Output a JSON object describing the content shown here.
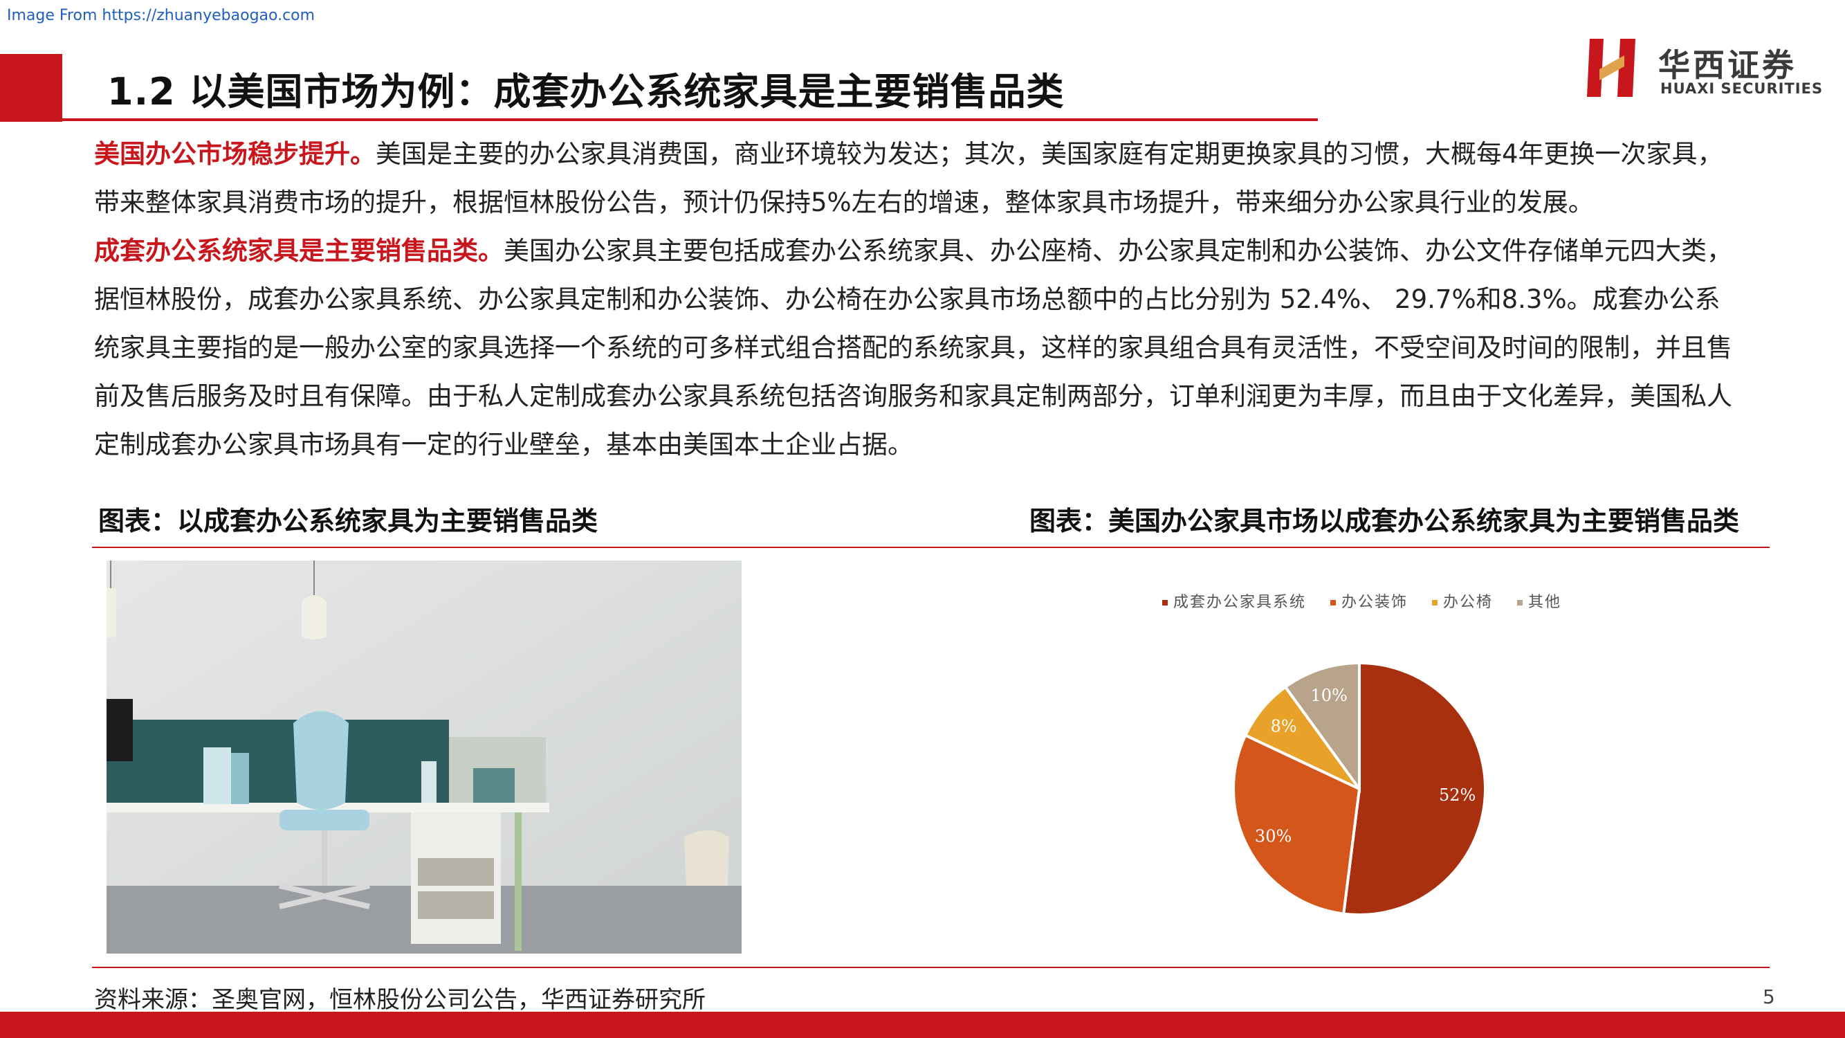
{
  "watermark": "Image From https://zhuanyebaogao.com",
  "header": {
    "title": "1.2  以美国市场为例：成套办公系统家具是主要销售品类",
    "logo_cn": "华西证券",
    "logo_en": "HUAXI SECURITIES",
    "accent_color": "#c8161d"
  },
  "body": {
    "para1_highlight": "美国办公市场稳步提升。",
    "para1_text": "美国是主要的办公家具消费国，商业环境较为发达；其次，美国家庭有定期更换家具的习惯，大概每4年更换一次家具，带来整体家具消费市场的提升，根据恒林股份公告，预计仍保持5%左右的增速，整体家具市场提升，带来细分办公家具行业的发展。",
    "para2_highlight": "成套办公系统家具是主要销售品类。",
    "para2_text": "美国办公家具主要包括成套办公系统家具、办公座椅、办公家具定制和办公装饰、办公文件存储单元四大类，据恒林股份，成套办公家具系统、办公家具定制和办公装饰、办公椅在办公家具市场总额中的占比分别为 52.4%、 29.7%和8.3%。成套办公系统家具主要指的是一般办公室的家具选择一个系统的可多样式组合搭配的系统家具，这样的家具组合具有灵活性，不受空间及时间的限制，并且售前及售后服务及时且有保障。由于私人定制成套办公家具系统包括咨询服务和家具定制两部分，订单利润更为丰厚，而且由于文化差异，美国私人定制成套办公家具市场具有一定的行业壁垒，基本由美国本土企业占据。"
  },
  "figures": {
    "left_caption": "图表：以成套办公系统家具为主要销售品类",
    "right_caption": "图表：美国办公家具市场以成套办公系统家具为主要销售品类"
  },
  "chart_data": {
    "type": "pie",
    "title": "",
    "categories": [
      "成套办公家具系统",
      "办公装饰",
      "办公椅",
      "其他"
    ],
    "values": [
      52,
      30,
      8,
      10
    ],
    "labels": [
      "52%",
      "30%",
      "8%",
      "10%"
    ],
    "colors": [
      "#a8300f",
      "#d4561b",
      "#e8a22a",
      "#b8a48a"
    ],
    "legend_position": "top"
  },
  "footer": {
    "source": "资料来源：圣奥官网，恒林股份公司公告，华西证券研究所",
    "page": "5"
  }
}
